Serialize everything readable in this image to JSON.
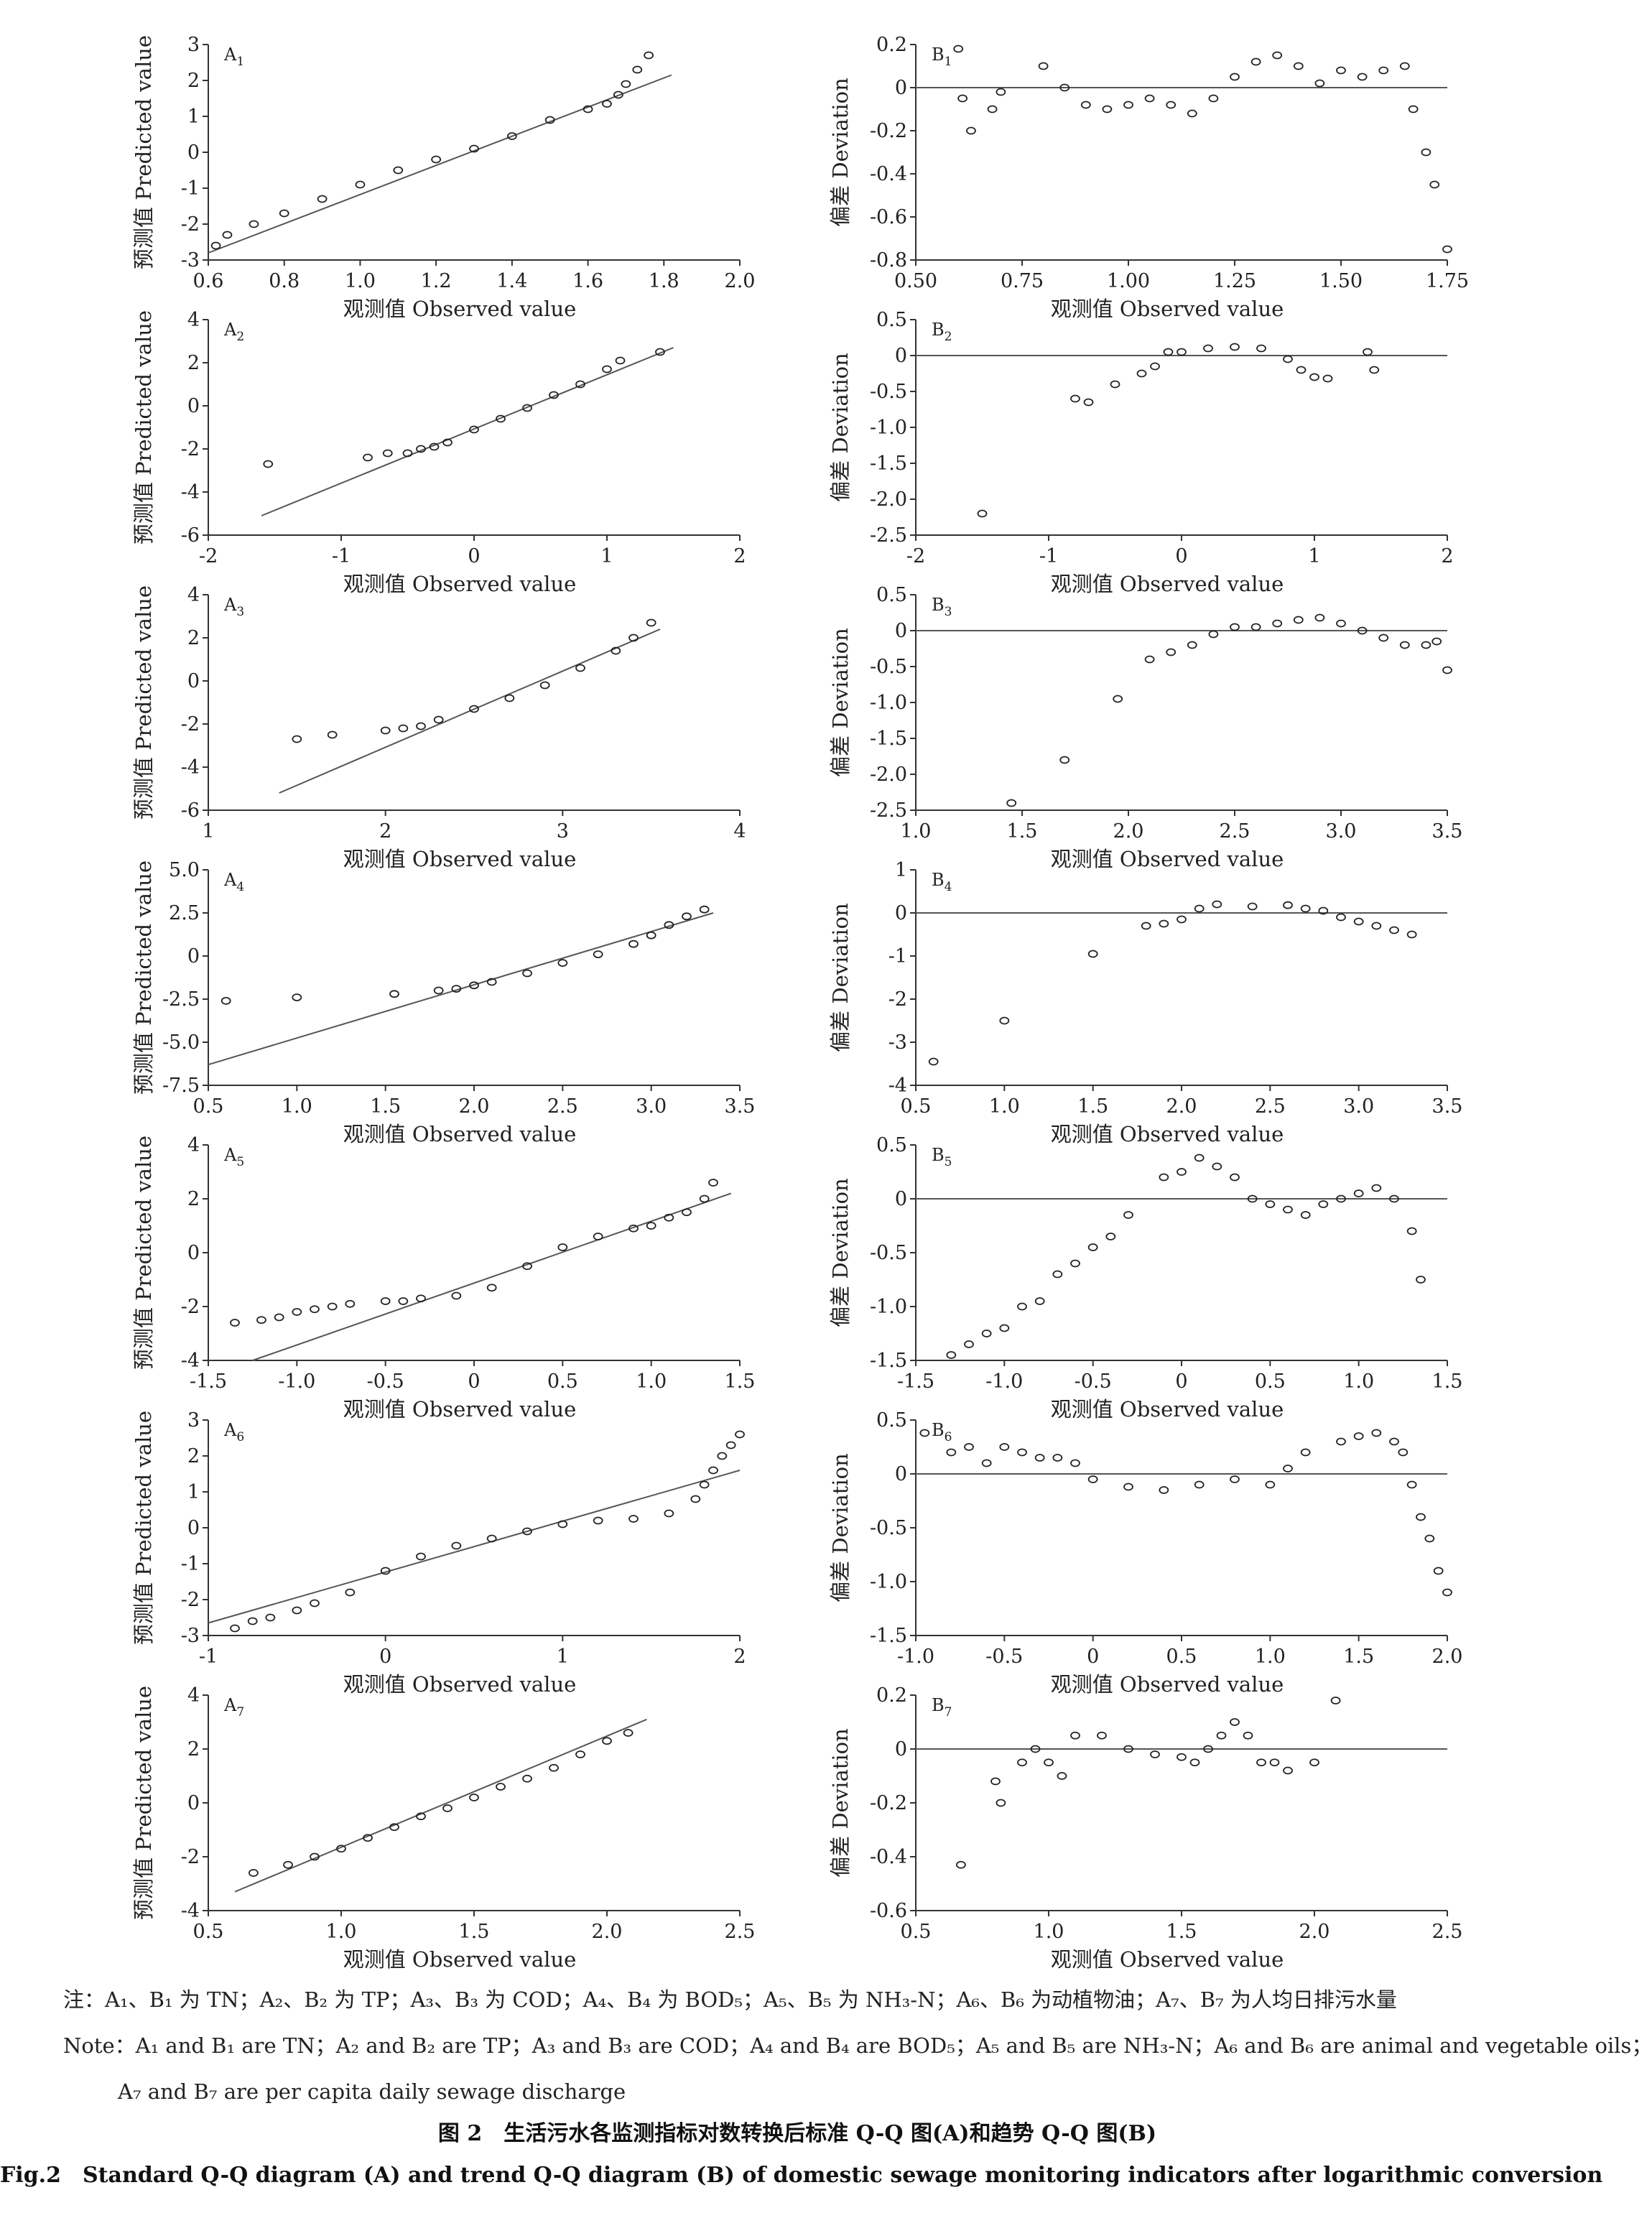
{
  "panels": [
    {
      "id": "A1",
      "label_main": "A",
      "label_sub": "1",
      "side": "A",
      "xlim": [
        0.6,
        2.0
      ],
      "xticks": [
        "0.6",
        "0.8",
        "1.0",
        "1.2",
        "1.4",
        "1.6",
        "1.8",
        "2.0"
      ],
      "ylim": [
        -3,
        3
      ],
      "yticks": [
        "3",
        "2",
        "1",
        "0",
        "-1",
        "-2",
        "-3"
      ]
    },
    {
      "id": "B1",
      "label_main": "B",
      "label_sub": "1",
      "side": "B",
      "xlim": [
        0.5,
        1.75
      ],
      "xticks": [
        "0.50",
        "0.75",
        "1.00",
        "1.25",
        "1.50",
        "1.75"
      ],
      "ylim": [
        -0.8,
        0.2
      ],
      "yticks": [
        "0.2",
        "0",
        "-0.2",
        "-0.4",
        "-0.6",
        "-0.8"
      ]
    },
    {
      "id": "A2",
      "label_main": "A",
      "label_sub": "2",
      "side": "A",
      "xlim": [
        -2,
        2
      ],
      "xticks": [
        "-2",
        "-1",
        "0",
        "1",
        "2"
      ],
      "ylim": [
        -6,
        4
      ],
      "yticks": [
        "4",
        "2",
        "0",
        "-2",
        "-4",
        "-6"
      ]
    },
    {
      "id": "B2",
      "label_main": "B",
      "label_sub": "2",
      "side": "B",
      "xlim": [
        -2,
        2
      ],
      "xticks": [
        "-2",
        "-1",
        "0",
        "1",
        "2"
      ],
      "ylim": [
        -2.5,
        0.5
      ],
      "yticks": [
        "0.5",
        "0",
        "-0.5",
        "-1.0",
        "-1.5",
        "-2.0",
        "-2.5"
      ]
    },
    {
      "id": "A3",
      "label_main": "A",
      "label_sub": "3",
      "side": "A",
      "xlim": [
        1,
        4
      ],
      "xticks": [
        "1",
        "2",
        "3",
        "4"
      ],
      "ylim": [
        -6,
        4
      ],
      "yticks": [
        "4",
        "2",
        "0",
        "-2",
        "-4",
        "-6"
      ]
    },
    {
      "id": "B3",
      "label_main": "B",
      "label_sub": "3",
      "side": "B",
      "xlim": [
        1.0,
        3.5
      ],
      "xticks": [
        "1.0",
        "1.5",
        "2.0",
        "2.5",
        "3.0",
        "3.5"
      ],
      "ylim": [
        -2.5,
        0.5
      ],
      "yticks": [
        "0.5",
        "0",
        "-0.5",
        "-1.0",
        "-1.5",
        "-2.0",
        "-2.5"
      ]
    },
    {
      "id": "A4",
      "label_main": "A",
      "label_sub": "4",
      "side": "A",
      "xlim": [
        0.5,
        3.5
      ],
      "xticks": [
        "0.5",
        "1.0",
        "1.5",
        "2.0",
        "2.5",
        "3.0",
        "3.5"
      ],
      "ylim": [
        -7.5,
        5.0
      ],
      "yticks": [
        "5.0",
        "2.5",
        "0",
        "-2.5",
        "-5.0",
        "-7.5"
      ]
    },
    {
      "id": "B4",
      "label_main": "B",
      "label_sub": "4",
      "side": "B",
      "xlim": [
        0.5,
        3.5
      ],
      "xticks": [
        "0.5",
        "1.0",
        "1.5",
        "2.0",
        "2.5",
        "3.0",
        "3.5"
      ],
      "ylim": [
        -4,
        1
      ],
      "yticks": [
        "1",
        "0",
        "-1",
        "-2",
        "-3",
        "-4"
      ]
    },
    {
      "id": "A5",
      "label_main": "A",
      "label_sub": "5",
      "side": "A",
      "xlim": [
        -1.5,
        1.5
      ],
      "xticks": [
        "-1.5",
        "-1.0",
        "-0.5",
        "0",
        "0.5",
        "1.0",
        "1.5"
      ],
      "ylim": [
        -4,
        4
      ],
      "yticks": [
        "4",
        "2",
        "0",
        "-2",
        "-4"
      ]
    },
    {
      "id": "B5",
      "label_main": "B",
      "label_sub": "5",
      "side": "B",
      "xlim": [
        -1.5,
        1.5
      ],
      "xticks": [
        "-1.5",
        "-1.0",
        "-0.5",
        "0",
        "0.5",
        "1.0",
        "1.5"
      ],
      "ylim": [
        -1.5,
        0.5
      ],
      "yticks": [
        "0.5",
        "0",
        "-0.5",
        "-1.0",
        "-1.5"
      ]
    },
    {
      "id": "A6",
      "label_main": "A",
      "label_sub": "6",
      "side": "A",
      "xlim": [
        -1,
        2
      ],
      "xticks": [
        "-1",
        "0",
        "1",
        "2"
      ],
      "ylim": [
        -3,
        3
      ],
      "yticks": [
        "3",
        "2",
        "1",
        "0",
        "-1",
        "-2",
        "-3"
      ]
    },
    {
      "id": "B6",
      "label_main": "B",
      "label_sub": "6",
      "side": "B",
      "xlim": [
        -1.0,
        2.0
      ],
      "xticks": [
        "-1.0",
        "-0.5",
        "0",
        "0.5",
        "1.0",
        "1.5",
        "2.0"
      ],
      "ylim": [
        -1.5,
        0.5
      ],
      "yticks": [
        "0.5",
        "0",
        "-0.5",
        "-1.0",
        "-1.5"
      ]
    },
    {
      "id": "A7",
      "label_main": "A",
      "label_sub": "7",
      "side": "A",
      "xlim": [
        0.5,
        2.5
      ],
      "xticks": [
        "0.5",
        "1.0",
        "1.5",
        "2.0",
        "2.5"
      ],
      "ylim": [
        -4,
        4
      ],
      "yticks": [
        "4",
        "2",
        "0",
        "-2",
        "-4"
      ]
    },
    {
      "id": "B7",
      "label_main": "B",
      "label_sub": "7",
      "side": "B",
      "xlim": [
        0.5,
        2.5
      ],
      "xticks": [
        "0.5",
        "1.0",
        "1.5",
        "2.0",
        "2.5"
      ],
      "ylim": [
        -0.6,
        0.2
      ],
      "yticks": [
        "0.2",
        "0",
        "-0.2",
        "-0.4",
        "-0.6"
      ]
    }
  ],
  "labels": {
    "x_label": "观测值 Observed value",
    "a_y_label": "预测值 Predicted value",
    "b_y_label": "偏差 Deviation"
  },
  "notes": {
    "cn": "注：A₁、B₁ 为 TN；A₂、B₂ 为 TP；A₃、B₃ 为 COD；A₄、B₄ 为 BOD₅；A₅、B₅ 为 NH₃-N；A₆、B₆ 为动植物油；A₇、B₇ 为人均日排污水量",
    "en1": "Note：A₁ and B₁ are TN；A₂ and B₂ are TP；A₃ and B₃ are COD；A₄ and B₄ are BOD₅；A₅ and B₅ are NH₃-N；A₆ and B₆ are animal and vegetable oils；",
    "en2": "A₇ and B₇ are per capita daily sewage discharge"
  },
  "captions": {
    "cn": "图 2　生活污水各监测指标对数转换后标准 Q-Q 图(A)和趋势 Q-Q 图(B)",
    "en": "Fig.2　Standard Q-Q diagram (A) and trend Q-Q diagram (B) of domestic sewage monitoring indicators after logarithmic conversion"
  },
  "chart_data": [
    {
      "panel": "A1",
      "type": "scatter",
      "x": [
        0.62,
        0.65,
        0.72,
        0.8,
        0.9,
        1.0,
        1.1,
        1.2,
        1.3,
        1.4,
        1.5,
        1.6,
        1.65,
        1.68,
        1.7,
        1.73,
        1.76
      ],
      "y": [
        -2.6,
        -2.3,
        -2.0,
        -1.7,
        -1.3,
        -0.9,
        -0.5,
        -0.2,
        0.1,
        0.45,
        0.9,
        1.2,
        1.35,
        1.6,
        1.9,
        2.3,
        2.7
      ],
      "line": [
        [
          0.6,
          -2.8
        ],
        [
          1.82,
          2.15
        ]
      ]
    },
    {
      "panel": "B1",
      "type": "scatter",
      "x": [
        0.6,
        0.61,
        0.63,
        0.68,
        0.7,
        0.8,
        0.85,
        0.9,
        0.95,
        1.0,
        1.05,
        1.1,
        1.15,
        1.2,
        1.25,
        1.3,
        1.35,
        1.4,
        1.45,
        1.5,
        1.55,
        1.6,
        1.65,
        1.67,
        1.7,
        1.72,
        1.75
      ],
      "y": [
        0.18,
        -0.05,
        -0.2,
        -0.1,
        -0.02,
        0.1,
        0.0,
        -0.08,
        -0.1,
        -0.08,
        -0.05,
        -0.08,
        -0.12,
        -0.05,
        0.05,
        0.12,
        0.15,
        0.1,
        0.02,
        0.08,
        0.05,
        0.08,
        0.1,
        -0.1,
        -0.3,
        -0.45,
        -0.75
      ],
      "line": [
        [
          0.5,
          0
        ],
        [
          1.75,
          0
        ]
      ]
    },
    {
      "panel": "A2",
      "type": "scatter",
      "x": [
        -1.55,
        -0.8,
        -0.65,
        -0.5,
        -0.4,
        -0.3,
        -0.2,
        0.0,
        0.2,
        0.4,
        0.6,
        0.8,
        1.0,
        1.1,
        1.4
      ],
      "y": [
        -2.7,
        -2.4,
        -2.2,
        -2.2,
        -2.0,
        -1.9,
        -1.7,
        -1.1,
        -0.6,
        -0.1,
        0.5,
        1.0,
        1.7,
        2.1,
        2.5
      ],
      "line": [
        [
          -1.6,
          -5.1
        ],
        [
          1.5,
          2.7
        ]
      ]
    },
    {
      "panel": "B2",
      "type": "scatter",
      "x": [
        -1.5,
        -0.8,
        -0.7,
        -0.5,
        -0.3,
        -0.2,
        -0.1,
        0.0,
        0.2,
        0.4,
        0.6,
        0.8,
        0.9,
        1.0,
        1.1,
        1.4,
        1.45
      ],
      "y": [
        -2.2,
        -0.6,
        -0.65,
        -0.4,
        -0.25,
        -0.15,
        0.05,
        0.05,
        0.1,
        0.12,
        0.1,
        -0.05,
        -0.2,
        -0.3,
        -0.32,
        0.05,
        -0.2
      ],
      "line": [
        [
          -2,
          0
        ],
        [
          2,
          0
        ]
      ]
    },
    {
      "panel": "A3",
      "type": "scatter",
      "x": [
        1.5,
        1.7,
        2.0,
        2.1,
        2.2,
        2.3,
        2.5,
        2.7,
        2.9,
        3.1,
        3.3,
        3.4,
        3.5
      ],
      "y": [
        -2.7,
        -2.5,
        -2.3,
        -2.2,
        -2.1,
        -1.8,
        -1.3,
        -0.8,
        -0.2,
        0.6,
        1.4,
        2.0,
        2.7
      ],
      "line": [
        [
          1.4,
          -5.2
        ],
        [
          3.55,
          2.4
        ]
      ]
    },
    {
      "panel": "B3",
      "type": "scatter",
      "x": [
        1.45,
        1.7,
        1.95,
        2.1,
        2.2,
        2.3,
        2.4,
        2.5,
        2.6,
        2.7,
        2.8,
        2.9,
        3.0,
        3.1,
        3.2,
        3.3,
        3.4,
        3.45,
        3.5
      ],
      "y": [
        -2.4,
        -1.8,
        -0.95,
        -0.4,
        -0.3,
        -0.2,
        -0.05,
        0.05,
        0.05,
        0.1,
        0.15,
        0.18,
        0.1,
        0.0,
        -0.1,
        -0.2,
        -0.2,
        -0.15,
        -0.55
      ],
      "line": [
        [
          1.0,
          0
        ],
        [
          3.5,
          0
        ]
      ]
    },
    {
      "panel": "A4",
      "type": "scatter",
      "x": [
        0.6,
        1.0,
        1.55,
        1.8,
        1.9,
        2.0,
        2.1,
        2.3,
        2.5,
        2.7,
        2.9,
        3.0,
        3.1,
        3.2,
        3.3
      ],
      "y": [
        -2.6,
        -2.4,
        -2.2,
        -2.0,
        -1.9,
        -1.7,
        -1.5,
        -1.0,
        -0.4,
        0.1,
        0.7,
        1.2,
        1.8,
        2.3,
        2.7
      ],
      "line": [
        [
          0.5,
          -6.3
        ],
        [
          3.35,
          2.5
        ]
      ]
    },
    {
      "panel": "B4",
      "type": "scatter",
      "x": [
        0.6,
        1.0,
        1.5,
        1.8,
        1.9,
        2.0,
        2.1,
        2.2,
        2.4,
        2.6,
        2.7,
        2.8,
        2.9,
        3.0,
        3.1,
        3.2,
        3.3
      ],
      "y": [
        -3.45,
        -2.5,
        -0.95,
        -0.3,
        -0.25,
        -0.15,
        0.1,
        0.2,
        0.15,
        0.18,
        0.1,
        0.05,
        -0.1,
        -0.2,
        -0.3,
        -0.4,
        -0.5
      ],
      "line": [
        [
          0.5,
          0
        ],
        [
          3.5,
          0
        ]
      ]
    },
    {
      "panel": "A5",
      "type": "scatter",
      "x": [
        -1.35,
        -1.2,
        -1.1,
        -1.0,
        -0.9,
        -0.8,
        -0.7,
        -0.5,
        -0.4,
        -0.3,
        -0.1,
        0.1,
        0.3,
        0.5,
        0.7,
        0.9,
        1.0,
        1.1,
        1.2,
        1.3,
        1.35
      ],
      "y": [
        -2.6,
        -2.5,
        -2.4,
        -2.2,
        -2.1,
        -2.0,
        -1.9,
        -1.8,
        -1.8,
        -1.7,
        -1.6,
        -1.3,
        -0.5,
        0.2,
        0.6,
        0.9,
        1.0,
        1.3,
        1.5,
        2.0,
        2.6
      ],
      "line": [
        [
          -1.25,
          -4.0
        ],
        [
          1.45,
          2.2
        ]
      ]
    },
    {
      "panel": "B5",
      "type": "scatter",
      "x": [
        -1.3,
        -1.2,
        -1.1,
        -1.0,
        -0.9,
        -0.8,
        -0.7,
        -0.6,
        -0.5,
        -0.4,
        -0.3,
        -0.1,
        0.0,
        0.1,
        0.2,
        0.3,
        0.4,
        0.5,
        0.6,
        0.7,
        0.8,
        0.9,
        1.0,
        1.1,
        1.2,
        1.3,
        1.35
      ],
      "y": [
        -1.45,
        -1.35,
        -1.25,
        -1.2,
        -1.0,
        -0.95,
        -0.7,
        -0.6,
        -0.45,
        -0.35,
        -0.15,
        0.2,
        0.25,
        0.38,
        0.3,
        0.2,
        0.0,
        -0.05,
        -0.1,
        -0.15,
        -0.05,
        0.0,
        0.05,
        0.1,
        0.0,
        -0.3,
        -0.75
      ],
      "line": [
        [
          -1.5,
          0
        ],
        [
          1.5,
          0
        ]
      ]
    },
    {
      "panel": "A6",
      "type": "scatter",
      "x": [
        -0.85,
        -0.75,
        -0.65,
        -0.5,
        -0.4,
        -0.2,
        0.0,
        0.2,
        0.4,
        0.6,
        0.8,
        1.0,
        1.2,
        1.4,
        1.6,
        1.75,
        1.8,
        1.85,
        1.9,
        1.95,
        2.0
      ],
      "y": [
        -2.8,
        -2.6,
        -2.5,
        -2.3,
        -2.1,
        -1.8,
        -1.2,
        -0.8,
        -0.5,
        -0.3,
        -0.1,
        0.1,
        0.2,
        0.25,
        0.4,
        0.8,
        1.2,
        1.6,
        2.0,
        2.3,
        2.6
      ],
      "line": [
        [
          -1,
          -2.65
        ],
        [
          2,
          1.6
        ]
      ]
    },
    {
      "panel": "B6",
      "type": "scatter",
      "x": [
        -0.95,
        -0.8,
        -0.7,
        -0.6,
        -0.5,
        -0.4,
        -0.3,
        -0.2,
        -0.1,
        0.0,
        0.2,
        0.4,
        0.6,
        0.8,
        1.0,
        1.1,
        1.2,
        1.4,
        1.5,
        1.6,
        1.7,
        1.75,
        1.8,
        1.85,
        1.9,
        1.95,
        2.0
      ],
      "y": [
        0.38,
        0.2,
        0.25,
        0.1,
        0.25,
        0.2,
        0.15,
        0.15,
        0.1,
        -0.05,
        -0.12,
        -0.15,
        -0.1,
        -0.05,
        -0.1,
        0.05,
        0.2,
        0.3,
        0.35,
        0.38,
        0.3,
        0.2,
        -0.1,
        -0.4,
        -0.6,
        -0.9,
        -1.1
      ],
      "line": [
        [
          -1.0,
          0
        ],
        [
          2.0,
          0
        ]
      ]
    },
    {
      "panel": "A7",
      "type": "scatter",
      "x": [
        0.67,
        0.8,
        0.9,
        1.0,
        1.1,
        1.2,
        1.3,
        1.4,
        1.5,
        1.6,
        1.7,
        1.8,
        1.9,
        2.0,
        2.08
      ],
      "y": [
        -2.6,
        -2.3,
        -2.0,
        -1.7,
        -1.3,
        -0.9,
        -0.5,
        -0.2,
        0.2,
        0.6,
        0.9,
        1.3,
        1.8,
        2.3,
        2.6
      ],
      "line": [
        [
          0.6,
          -3.3
        ],
        [
          2.15,
          3.1
        ]
      ]
    },
    {
      "panel": "B7",
      "type": "scatter",
      "x": [
        0.67,
        0.8,
        0.82,
        0.9,
        0.95,
        1.0,
        1.05,
        1.1,
        1.2,
        1.3,
        1.4,
        1.5,
        1.55,
        1.6,
        1.65,
        1.7,
        1.75,
        1.8,
        1.85,
        1.9,
        2.0,
        2.08
      ],
      "y": [
        -0.43,
        -0.12,
        -0.2,
        -0.05,
        0.0,
        -0.05,
        -0.1,
        0.05,
        0.05,
        0.0,
        -0.02,
        -0.03,
        -0.05,
        0.0,
        0.05,
        0.1,
        0.05,
        -0.05,
        -0.05,
        -0.08,
        -0.05,
        0.18
      ],
      "line": [
        [
          0.5,
          0
        ],
        [
          2.5,
          0
        ]
      ]
    }
  ]
}
